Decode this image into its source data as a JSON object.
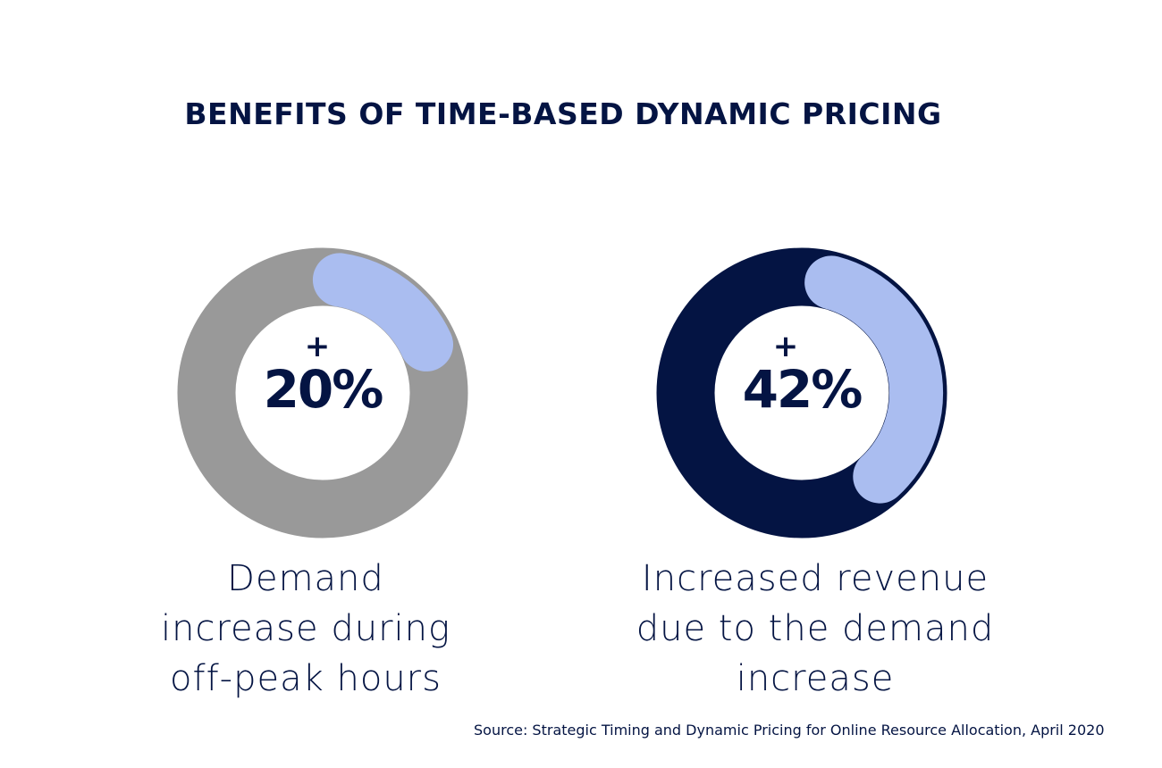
{
  "chart_data": [
    {
      "type": "pie",
      "title": "BENEFITS OF TIME-BASED DYNAMIC PRICING",
      "label": "+ 20%",
      "plus": "+",
      "value_text": "20%",
      "value": 20,
      "caption": "Demand increase during off-peak hours",
      "caption_lines": [
        "Demand",
        "increase during",
        "off-peak hours"
      ],
      "colors": {
        "track": "#999999",
        "arc": "#AABDF0",
        "text": "#041443"
      }
    },
    {
      "type": "pie",
      "label": "+ 42%",
      "plus": "+",
      "value_text": "42%",
      "value": 42,
      "caption": "Increased revenue due to the demand increase",
      "caption_lines": [
        "Increased revenue",
        "due to the demand",
        "increase"
      ],
      "colors": {
        "track": "#041443",
        "arc": "#AABDF0",
        "text": "#041443"
      }
    }
  ],
  "title": "BENEFITS OF TIME-BASED DYNAMIC PRICING",
  "source": "Source: Strategic Timing and Dynamic Pricing for Online Resource Allocation, April 2020"
}
